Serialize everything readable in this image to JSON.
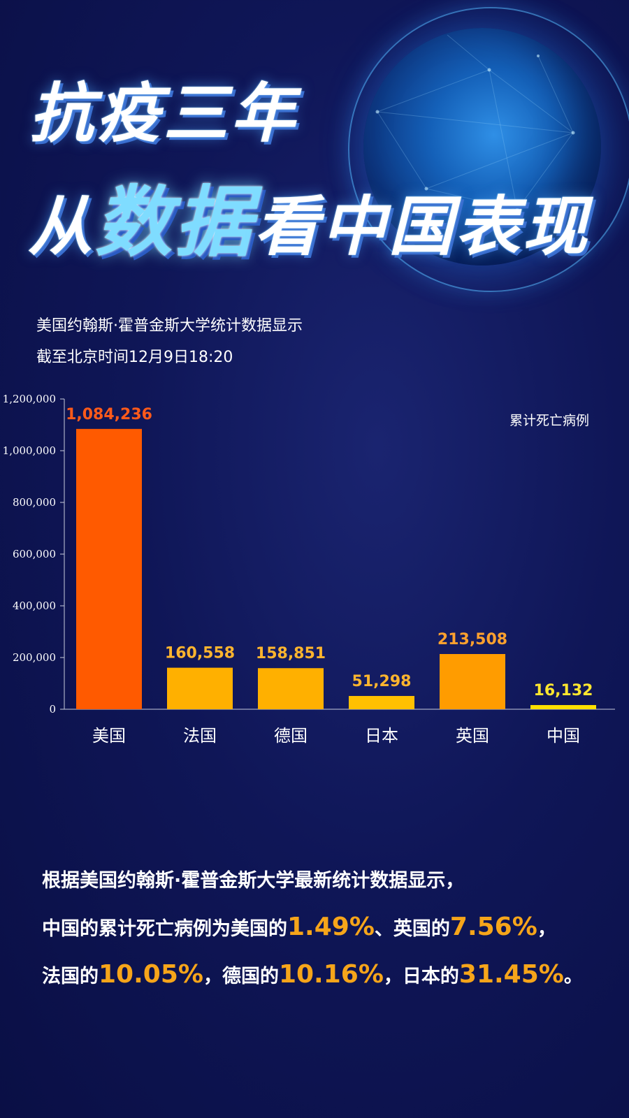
{
  "title": {
    "line1": "抗疫三年",
    "line2_a": "从",
    "line2_b": "数据",
    "line2_c": "看中国表现"
  },
  "subtitle": {
    "source": "美国约翰斯·霍普金斯大学统计数据显示",
    "time": "截至北京时间12月9日18:20"
  },
  "chart_data": {
    "type": "bar",
    "categories": [
      "美国",
      "法国",
      "德国",
      "日本",
      "英国",
      "中国"
    ],
    "values": [
      1084236,
      160558,
      158851,
      51298,
      213508,
      16132
    ],
    "value_labels": [
      "1,084,236",
      "160,558",
      "158,851",
      "51,298",
      "213,508",
      "16,132"
    ],
    "bar_colors": [
      "#ff5a00",
      "#ffb000",
      "#ffb000",
      "#ffc000",
      "#ff9c00",
      "#ffe000"
    ],
    "label_colors": [
      "#ff5a1a",
      "#ffb52e",
      "#ffb52e",
      "#ffb52e",
      "#ffa12e",
      "#ffe62e"
    ],
    "legend": "累计死亡病例",
    "legend_position": "top-right",
    "ylim": [
      0,
      1200000
    ],
    "yticks": [
      0,
      200000,
      400000,
      600000,
      800000,
      1000000,
      1200000
    ],
    "ytick_labels": [
      "0",
      "200,000",
      "400,000",
      "600,000",
      "800,000",
      "1,000,000",
      "1,200,000"
    ],
    "grid": false
  },
  "summary": {
    "p1": "根据美国约翰斯·霍普金斯大学最新统计数据显示，",
    "p2_a": "中国的累计死亡病例为美国的",
    "p2_v1": "1.49%",
    "p2_b": "、英国的",
    "p2_v2": "7.56%",
    "p2_c": "，",
    "p3_a": "法国的",
    "p3_v1": "10.05%",
    "p3_b": "，德国的",
    "p3_v2": "10.16%",
    "p3_c": "，日本的",
    "p3_v3": "31.45%",
    "p3_d": "。"
  },
  "colors": {
    "background": "#0f1657",
    "highlight": "#f6a51a",
    "title_accent": "#7fdcff"
  }
}
